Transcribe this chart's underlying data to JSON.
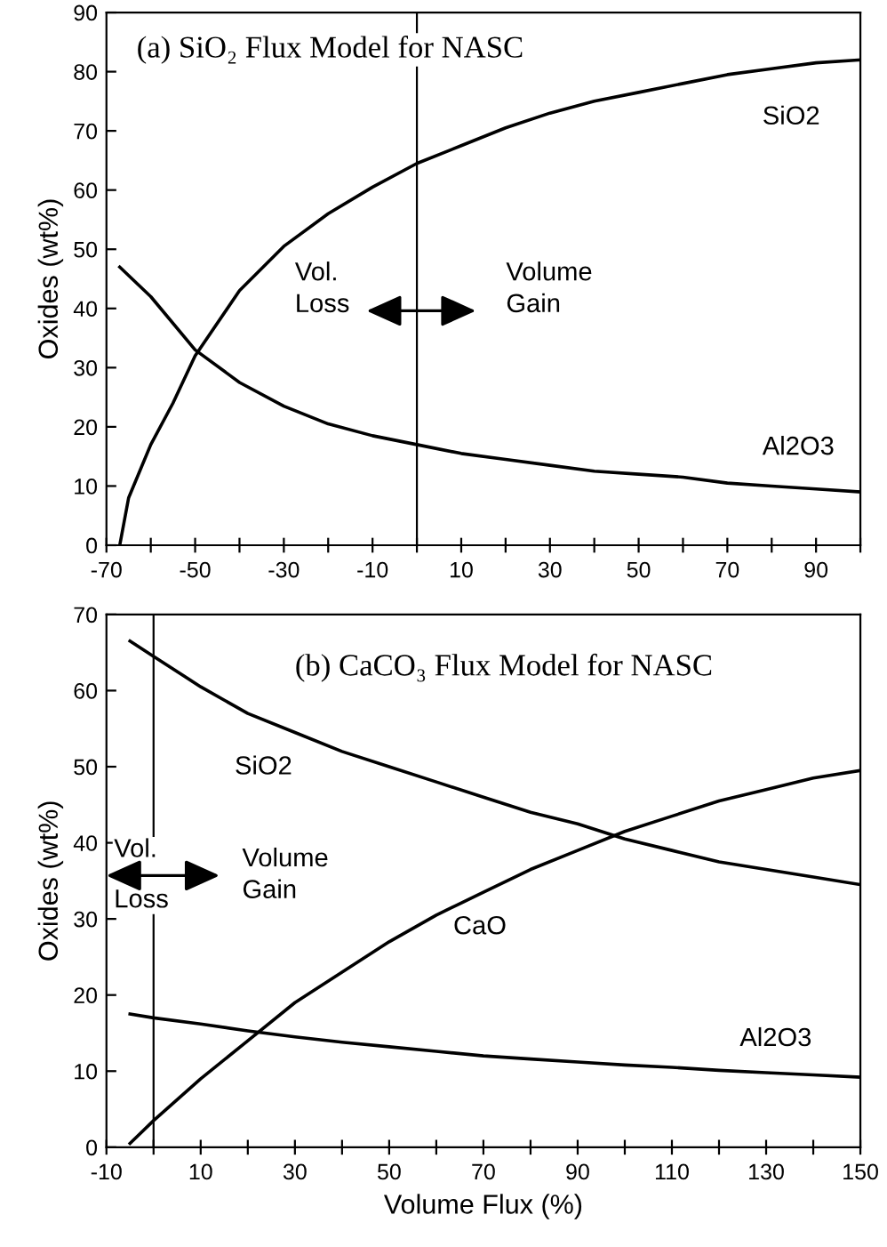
{
  "chart_data": [
    {
      "type": "line",
      "title": "(a) SiO₂ Flux Model for NASC",
      "ylabel": "Oxides (wt%)",
      "annotations": [
        "Vol.\nLoss",
        "Volume\nGain"
      ],
      "series": [
        {
          "name": "SiO2",
          "color": "#000000",
          "x": [
            -67,
            -65,
            -60,
            -55,
            -50,
            -40,
            -30,
            -20,
            -10,
            0,
            10,
            20,
            30,
            40,
            50,
            60,
            70,
            80,
            90,
            100
          ],
          "values": [
            0,
            8,
            17,
            24,
            32,
            43,
            50.5,
            56,
            60.5,
            64.5,
            67.5,
            70.5,
            73,
            75,
            76.5,
            78,
            79.5,
            80.5,
            81.5,
            82
          ]
        },
        {
          "name": "Al2O3",
          "color": "#000000",
          "x": [
            -67,
            -60,
            -50,
            -40,
            -30,
            -20,
            -10,
            0,
            10,
            20,
            30,
            40,
            50,
            60,
            70,
            80,
            90,
            100
          ],
          "values": [
            47,
            42,
            33,
            27.5,
            23.5,
            20.5,
            18.5,
            17,
            15.5,
            14.5,
            13.5,
            12.5,
            12,
            11.5,
            10.5,
            10,
            9.5,
            9
          ]
        }
      ],
      "xlim": [
        -70,
        100
      ],
      "xticks": [
        -70,
        {
          "value": -60,
          "label": null
        },
        -50,
        {
          "value": -40,
          "label": null
        },
        -30,
        {
          "value": -20,
          "label": null
        },
        -10,
        {
          "value": 0,
          "label": null
        },
        10,
        {
          "value": 20,
          "label": null
        },
        30,
        {
          "value": 40,
          "label": null
        },
        50,
        {
          "value": 60,
          "label": null
        },
        70,
        {
          "value": 80,
          "label": null
        },
        90,
        {
          "value": 100,
          "label": null
        }
      ],
      "ylim": [
        0,
        90
      ],
      "yticks": [
        0,
        10,
        20,
        30,
        40,
        50,
        60,
        70,
        80,
        90
      ],
      "ref_lines": [
        {
          "axis": "x",
          "value": 0,
          "color": "#000000"
        }
      ],
      "grid": false,
      "legend": false,
      "line_style": "solid",
      "marker": "none"
    },
    {
      "type": "line",
      "title": "(b) CaCO₃ Flux Model for NASC",
      "xlabel": "Volume Flux (%)",
      "ylabel": "Oxides (wt%)",
      "annotations": [
        "Vol.\nLoss",
        "Volume\nGain"
      ],
      "series": [
        {
          "name": "SiO2",
          "color": "#000000",
          "x": [
            -5,
            0,
            10,
            20,
            30,
            40,
            50,
            60,
            70,
            80,
            90,
            100,
            110,
            120,
            130,
            140,
            150
          ],
          "values": [
            66.5,
            64.5,
            60.5,
            57,
            54.5,
            52,
            50,
            48,
            46,
            44,
            42.5,
            40.5,
            39,
            37.5,
            36.5,
            35.5,
            34.5
          ]
        },
        {
          "name": "CaO",
          "color": "#000000",
          "x": [
            -5,
            0,
            10,
            20,
            30,
            40,
            50,
            60,
            70,
            80,
            90,
            100,
            110,
            120,
            130,
            140,
            150
          ],
          "values": [
            0.5,
            3.5,
            9,
            14,
            19,
            23,
            27,
            30.5,
            33.5,
            36.5,
            39,
            41.5,
            43.5,
            45.5,
            47,
            48.5,
            49.5
          ]
        },
        {
          "name": "Al2O3",
          "color": "#000000",
          "x": [
            -5,
            0,
            10,
            20,
            30,
            40,
            50,
            60,
            70,
            80,
            90,
            100,
            110,
            120,
            130,
            140,
            150
          ],
          "values": [
            17.5,
            17,
            16.2,
            15.3,
            14.5,
            13.8,
            13.2,
            12.6,
            12,
            11.6,
            11.2,
            10.8,
            10.5,
            10.1,
            9.8,
            9.5,
            9.2
          ]
        }
      ],
      "xlim": [
        -10,
        150
      ],
      "xticks": [
        -10,
        {
          "value": 0,
          "label": null
        },
        10,
        {
          "value": 20,
          "label": null
        },
        30,
        {
          "value": 40,
          "label": null
        },
        50,
        {
          "value": 60,
          "label": null
        },
        70,
        {
          "value": 80,
          "label": null
        },
        90,
        {
          "value": 100,
          "label": null
        },
        110,
        {
          "value": 120,
          "label": null
        },
        130,
        {
          "value": 140,
          "label": null
        },
        150
      ],
      "ylim": [
        0,
        70
      ],
      "yticks": [
        0,
        10,
        20,
        30,
        40,
        50,
        60,
        70
      ],
      "ref_lines": [
        {
          "axis": "x",
          "value": 0,
          "color": "#000000"
        }
      ],
      "grid": false,
      "legend": false,
      "line_style": "solid",
      "marker": "none"
    }
  ]
}
